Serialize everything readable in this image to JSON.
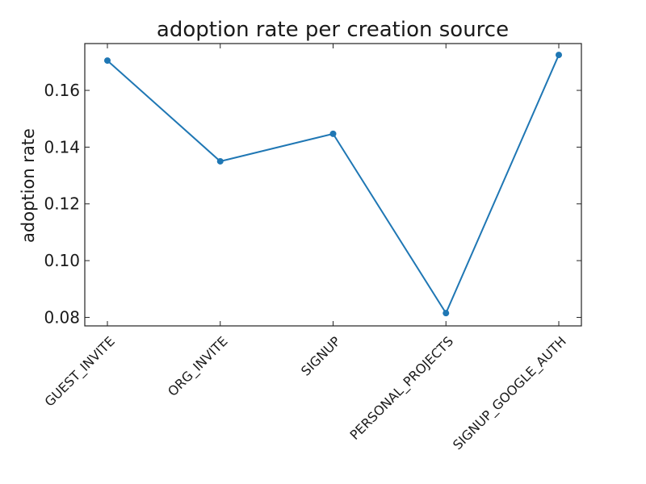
{
  "chart_data": {
    "type": "line",
    "title": "adoption rate per creation source",
    "xlabel": "",
    "ylabel": "adoption rate",
    "categories": [
      "GUEST_INVITE",
      "ORG_INVITE",
      "SIGNUP",
      "PERSONAL_PROJECTS",
      "SIGNUP_GOOGLE_AUTH"
    ],
    "values": [
      0.1705,
      0.135,
      0.1447,
      0.0815,
      0.1725
    ],
    "yticks": [
      0.08,
      0.1,
      0.12,
      0.14,
      0.16
    ],
    "ytick_labels": [
      "0.08",
      "0.10",
      "0.12",
      "0.14",
      "0.16"
    ],
    "ylim": [
      0.077,
      0.1765
    ],
    "grid": false,
    "series_color": "#1f77b4",
    "tick_direction": "in",
    "ticks_all_sides": true
  }
}
